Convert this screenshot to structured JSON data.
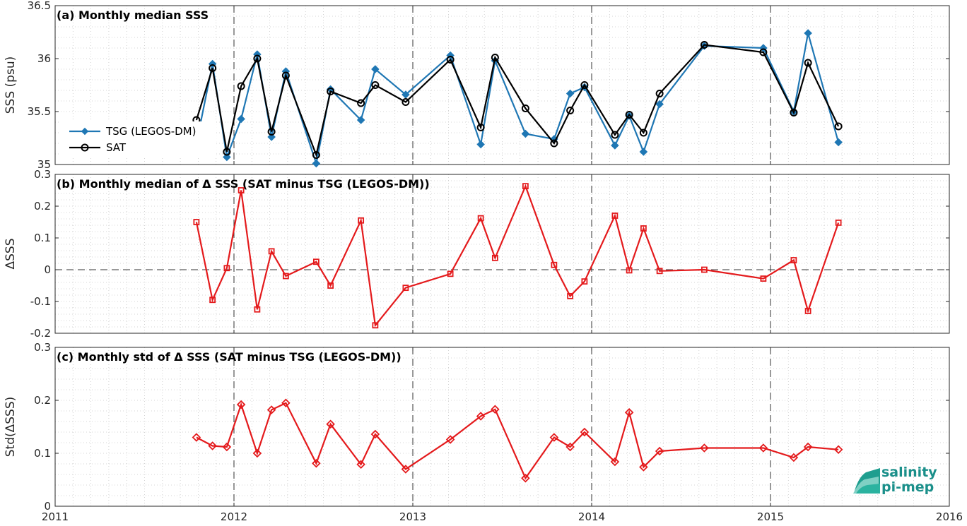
{
  "chart_data": [
    {
      "type": "line",
      "title": "(a) Monthly median SSS",
      "ylabel": "SSS (psu)",
      "ylim": [
        35,
        36.5
      ],
      "yticks": [
        "35",
        "35.5",
        "36",
        "36.5"
      ],
      "xlim": [
        2011,
        2016
      ],
      "grid": true,
      "legend_position": "left",
      "x": [
        2011.79,
        2011.88,
        2011.96,
        2012.04,
        2012.13,
        2012.21,
        2012.29,
        2012.46,
        2012.54,
        2012.71,
        2012.79,
        2012.96,
        2013.21,
        2013.38,
        2013.46,
        2013.63,
        2013.79,
        2013.88,
        2013.96,
        2014.13,
        2014.21,
        2014.29,
        2014.38,
        2014.63,
        2014.96,
        2015.13,
        2015.21,
        2015.38
      ],
      "series": [
        {
          "name": "TSG (LEGOS-DM)",
          "color": "#1f77b4",
          "marker": "diamond",
          "values": [
            35.2,
            35.95,
            35.07,
            35.43,
            36.04,
            35.26,
            35.88,
            35.01,
            35.71,
            35.42,
            35.9,
            35.66,
            36.03,
            35.19,
            35.98,
            35.29,
            35.24,
            35.67,
            35.73,
            35.18,
            35.46,
            35.12,
            35.57,
            36.12,
            36.1,
            35.5,
            36.24,
            35.21
          ]
        },
        {
          "name": "SAT",
          "color": "#000000",
          "marker": "circle",
          "values": [
            35.42,
            35.91,
            35.12,
            35.74,
            36.0,
            35.31,
            35.84,
            35.09,
            35.69,
            35.58,
            35.75,
            35.59,
            35.99,
            35.35,
            36.01,
            35.53,
            35.2,
            35.51,
            35.75,
            35.28,
            35.47,
            35.3,
            35.67,
            36.13,
            36.06,
            35.49,
            35.96,
            35.36
          ]
        }
      ]
    },
    {
      "type": "line",
      "title": "(b) Monthly median of Δ SSS (SAT minus TSG (LEGOS-DM))",
      "ylabel": "ΔSSS",
      "ylim": [
        -0.2,
        0.3
      ],
      "yticks": [
        "-0.2",
        "-0.1",
        "0",
        "0.1",
        "0.2",
        "0.3"
      ],
      "xlim": [
        2011,
        2016
      ],
      "grid": true,
      "x": [
        2011.79,
        2011.88,
        2011.96,
        2012.04,
        2012.13,
        2012.21,
        2012.29,
        2012.46,
        2012.54,
        2012.71,
        2012.79,
        2012.96,
        2013.21,
        2013.38,
        2013.46,
        2013.63,
        2013.79,
        2013.88,
        2013.96,
        2014.13,
        2014.21,
        2014.29,
        2014.38,
        2014.63,
        2014.96,
        2015.13,
        2015.21,
        2015.38
      ],
      "series": [
        {
          "color": "#e41a1c",
          "marker": "square",
          "values": [
            0.15,
            -0.095,
            0.005,
            0.25,
            -0.125,
            0.058,
            -0.02,
            0.025,
            -0.05,
            0.155,
            -0.175,
            -0.057,
            -0.013,
            0.162,
            0.037,
            0.263,
            0.015,
            -0.083,
            -0.037,
            0.17,
            -0.002,
            0.13,
            -0.004,
            0.0,
            -0.028,
            0.03,
            -0.13,
            0.148
          ]
        }
      ]
    },
    {
      "type": "line",
      "title": "(c) Monthly std of Δ SSS (SAT minus TSG (LEGOS-DM))",
      "ylabel": "Std(ΔSSS)",
      "ylim": [
        0,
        0.3
      ],
      "yticks": [
        "0",
        "0.1",
        "0.2",
        "0.3"
      ],
      "xlim": [
        2011,
        2016
      ],
      "xticks": [
        "2011",
        "2012",
        "2013",
        "2014",
        "2015",
        "2016"
      ],
      "grid": true,
      "x": [
        2011.79,
        2011.88,
        2011.96,
        2012.04,
        2012.13,
        2012.21,
        2012.29,
        2012.46,
        2012.54,
        2012.71,
        2012.79,
        2012.96,
        2013.21,
        2013.38,
        2013.46,
        2013.63,
        2013.79,
        2013.88,
        2013.96,
        2014.13,
        2014.21,
        2014.29,
        2014.38,
        2014.63,
        2014.96,
        2015.13,
        2015.21,
        2015.38
      ],
      "series": [
        {
          "color": "#e41a1c",
          "marker": "diamond",
          "values": [
            0.13,
            0.114,
            0.112,
            0.192,
            0.1,
            0.182,
            0.195,
            0.081,
            0.155,
            0.079,
            0.136,
            0.07,
            0.126,
            0.17,
            0.183,
            0.053,
            0.13,
            0.112,
            0.14,
            0.084,
            0.177,
            0.074,
            0.104,
            0.11,
            0.11,
            0.092,
            0.112,
            0.107
          ]
        }
      ]
    }
  ],
  "logo": {
    "line1": "salinity",
    "line2": "pi-mep",
    "color": "#1a8f8a"
  }
}
